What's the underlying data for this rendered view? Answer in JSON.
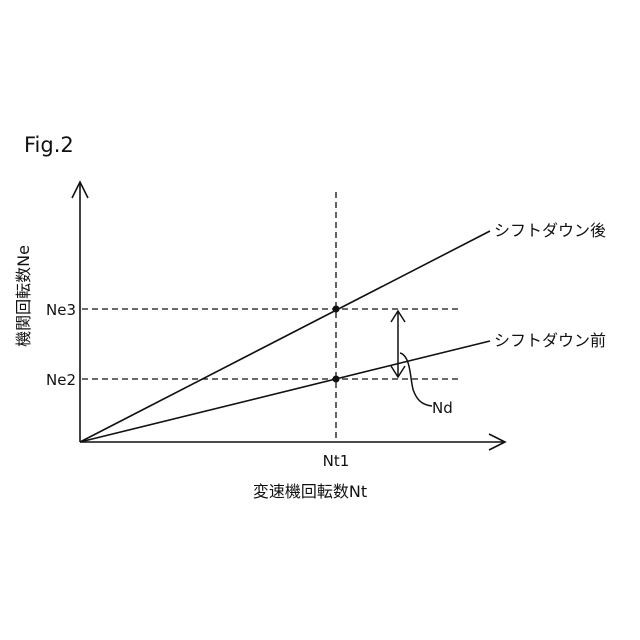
{
  "figure_label": "Fig.2",
  "y_axis_label": "機関回転数Ne",
  "x_axis_label": "変速機回転数Nt",
  "x_tick": "Nt1",
  "y_ticks": [
    "Ne3",
    "Ne2"
  ],
  "lines": [
    {
      "label": "シフトダウン後"
    },
    {
      "label": "シフトダウン前"
    }
  ],
  "difference_label": "Nd",
  "colors": {
    "ink": "#111111",
    "background": "#ffffff"
  }
}
